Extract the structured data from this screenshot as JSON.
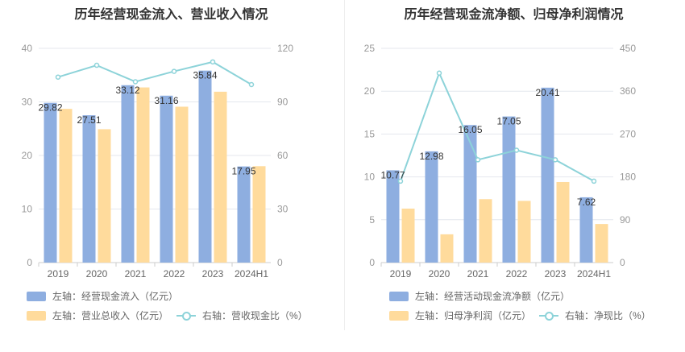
{
  "colors": {
    "bar1": "#8eaee0",
    "bar2": "#ffdb9c",
    "line": "#8dd3d9",
    "grid": "#e4e7ee"
  },
  "chart_data": [
    {
      "type": "bar",
      "title": "历年经营现金流入、营业收入情况",
      "categories": [
        "2019",
        "2020",
        "2021",
        "2022",
        "2023",
        "2024H1"
      ],
      "left_axis": {
        "min": 0,
        "max": 40,
        "ticks": [
          "0",
          "10",
          "20",
          "30",
          "40"
        ]
      },
      "right_axis": {
        "min": 0,
        "max": 120,
        "ticks": [
          "0",
          "30",
          "60",
          "90",
          "120"
        ]
      },
      "series": [
        {
          "name": "左轴：经营现金流入（亿元）",
          "kind": "bar",
          "axis": "left",
          "values": [
            29.82,
            27.51,
            33.12,
            31.16,
            35.84,
            17.95
          ],
          "labels": [
            "29.82",
            "27.51",
            "33.12",
            "31.16",
            "35.84",
            "17.95"
          ]
        },
        {
          "name": "左轴：营业总收入（亿元）",
          "kind": "bar",
          "axis": "left",
          "values": [
            28.7,
            24.9,
            32.7,
            29.1,
            31.9,
            18.0
          ]
        },
        {
          "name": "右轴：营收现金比（%）",
          "kind": "line",
          "axis": "right",
          "values": [
            103.9,
            110.5,
            101.3,
            107.1,
            112.4,
            99.7
          ]
        }
      ]
    },
    {
      "type": "bar",
      "title": "历年经营现金流净额、归母净利润情况",
      "categories": [
        "2019",
        "2020",
        "2021",
        "2022",
        "2023",
        "2024H1"
      ],
      "left_axis": {
        "min": 0,
        "max": 25,
        "ticks": [
          "0",
          "5",
          "10",
          "15",
          "20",
          "25"
        ]
      },
      "right_axis": {
        "min": 0,
        "max": 450,
        "ticks": [
          "0",
          "90",
          "180",
          "270",
          "360",
          "450"
        ]
      },
      "series": [
        {
          "name": "左轴：经营活动现金流净额（亿元）",
          "kind": "bar",
          "axis": "left",
          "values": [
            10.77,
            12.98,
            16.05,
            17.05,
            20.41,
            7.62
          ],
          "labels": [
            "10.77",
            "12.98",
            "16.05",
            "17.05",
            "20.41",
            "7.62"
          ]
        },
        {
          "name": "左轴：归母净利润（亿元）",
          "kind": "bar",
          "axis": "left",
          "values": [
            6.3,
            3.3,
            7.4,
            7.2,
            9.4,
            4.5
          ]
        },
        {
          "name": "右轴：净现比（%）",
          "kind": "line",
          "axis": "right",
          "values": [
            171,
            398,
            216,
            236,
            216,
            171
          ]
        }
      ]
    }
  ]
}
